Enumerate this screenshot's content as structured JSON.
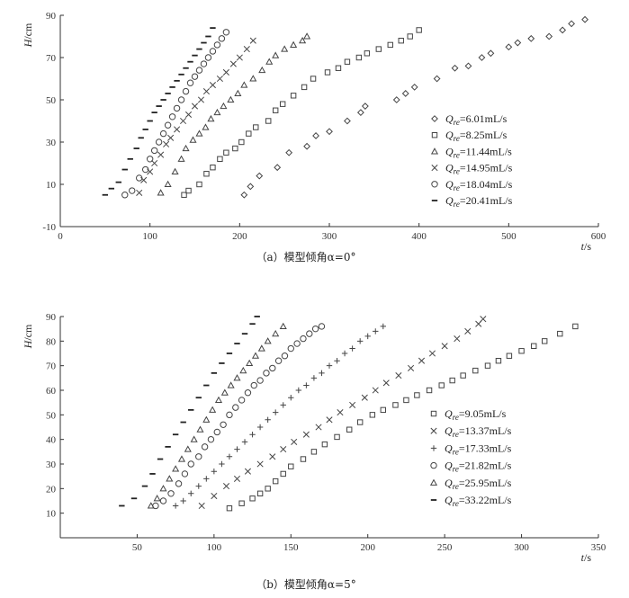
{
  "chart_data": [
    {
      "type": "scatter",
      "caption": "（a）模型倾角α=0°",
      "xlabel": "t/s",
      "ylabel": "H/cm",
      "xlim": [
        0,
        600
      ],
      "ylim": [
        -10,
        90
      ],
      "xticks": [
        0,
        100,
        200,
        300,
        400,
        500,
        600
      ],
      "yticks": [
        -10,
        10,
        30,
        50,
        70,
        90
      ],
      "grid": false,
      "legend_position": "right",
      "series": [
        {
          "name": "Qre=6.01mL/s",
          "marker": "diamond",
          "x": [
            205,
            212,
            222,
            242,
            255,
            275,
            285,
            300,
            320,
            335,
            340,
            375,
            385,
            395,
            420,
            440,
            455,
            470,
            480,
            500,
            510,
            525,
            545,
            560,
            570,
            585
          ],
          "y": [
            5,
            9,
            14,
            18,
            25,
            28,
            33,
            35,
            40,
            44,
            47,
            50,
            53,
            56,
            60,
            65,
            66,
            70,
            72,
            75,
            77,
            79,
            80,
            83,
            86,
            88
          ]
        },
        {
          "name": "Qre=8.25mL/s",
          "marker": "square",
          "x": [
            138,
            143,
            155,
            163,
            170,
            178,
            185,
            195,
            202,
            210,
            218,
            232,
            240,
            248,
            260,
            272,
            282,
            298,
            310,
            320,
            333,
            342,
            355,
            368,
            380,
            390,
            400
          ],
          "y": [
            5,
            7,
            10,
            15,
            18,
            22,
            25,
            27,
            30,
            34,
            37,
            40,
            45,
            48,
            52,
            56,
            60,
            63,
            65,
            68,
            70,
            72,
            74,
            76,
            78,
            80,
            83
          ]
        },
        {
          "name": "Qre=11.44mL/s",
          "marker": "triangle",
          "x": [
            112,
            120,
            128,
            135,
            140,
            148,
            155,
            162,
            168,
            175,
            182,
            190,
            198,
            205,
            215,
            225,
            233,
            240,
            250,
            260,
            270,
            275
          ],
          "y": [
            6,
            10,
            16,
            22,
            27,
            31,
            34,
            37,
            41,
            44,
            47,
            50,
            53,
            57,
            60,
            64,
            68,
            71,
            74,
            76,
            78,
            80
          ]
        },
        {
          "name": "Qre=14.95mL/s",
          "marker": "x",
          "x": [
            88,
            93,
            100,
            105,
            112,
            118,
            123,
            130,
            137,
            143,
            150,
            157,
            163,
            170,
            178,
            185,
            193,
            200,
            208,
            215
          ],
          "y": [
            6,
            12,
            16,
            20,
            24,
            29,
            32,
            36,
            40,
            43,
            47,
            50,
            54,
            57,
            60,
            63,
            67,
            70,
            74,
            78
          ]
        },
        {
          "name": "Qre=18.04mL/s",
          "marker": "circle",
          "x": [
            72,
            80,
            88,
            95,
            100,
            105,
            110,
            115,
            120,
            125,
            130,
            135,
            140,
            145,
            150,
            155,
            160,
            165,
            170,
            175,
            180,
            185
          ],
          "y": [
            5,
            7,
            13,
            17,
            22,
            26,
            30,
            34,
            38,
            42,
            46,
            50,
            54,
            58,
            61,
            64,
            67,
            70,
            73,
            76,
            79,
            82
          ]
        },
        {
          "name": "Qre=20.41mL/s",
          "marker": "dash",
          "x": [
            50,
            57,
            65,
            72,
            78,
            85,
            90,
            95,
            100,
            105,
            110,
            115,
            120,
            125,
            130,
            135,
            140,
            145,
            150,
            155,
            160,
            165,
            170
          ],
          "y": [
            5,
            8,
            11,
            17,
            22,
            27,
            32,
            36,
            40,
            44,
            47,
            50,
            53,
            56,
            59,
            62,
            65,
            68,
            71,
            74,
            77,
            80,
            84
          ]
        }
      ]
    },
    {
      "type": "scatter",
      "caption": "（b）模型倾角α=5°",
      "xlabel": "t/s",
      "ylabel": "H/cm",
      "xlim": [
        0,
        350
      ],
      "ylim": [
        0,
        90
      ],
      "xticks": [
        50,
        100,
        150,
        200,
        250,
        300,
        350
      ],
      "yticks": [
        10,
        20,
        30,
        40,
        50,
        60,
        70,
        80,
        90
      ],
      "grid": false,
      "legend_position": "right",
      "series": [
        {
          "name": "Qre=9.05mL/s",
          "marker": "square",
          "x": [
            110,
            118,
            125,
            130,
            135,
            140,
            145,
            150,
            158,
            165,
            172,
            180,
            188,
            195,
            203,
            210,
            218,
            225,
            232,
            240,
            248,
            255,
            262,
            270,
            278,
            285,
            292,
            300,
            308,
            315,
            325,
            335
          ],
          "y": [
            12,
            14,
            16,
            18,
            20,
            23,
            26,
            29,
            32,
            35,
            38,
            41,
            44,
            47,
            50,
            52,
            54,
            56,
            58,
            60,
            62,
            64,
            66,
            68,
            70,
            72,
            74,
            76,
            78,
            80,
            83,
            86
          ]
        },
        {
          "name": "Qre=13.37mL/s",
          "marker": "x",
          "x": [
            92,
            100,
            108,
            115,
            122,
            130,
            138,
            145,
            152,
            160,
            168,
            175,
            182,
            190,
            198,
            205,
            212,
            220,
            228,
            235,
            242,
            250,
            258,
            265,
            272,
            275
          ],
          "y": [
            13,
            17,
            21,
            24,
            27,
            30,
            33,
            36,
            39,
            42,
            45,
            48,
            51,
            54,
            57,
            60,
            63,
            66,
            69,
            72,
            75,
            78,
            81,
            84,
            87,
            89
          ]
        },
        {
          "name": "Qre=17.33mL/s",
          "marker": "plus",
          "x": [
            75,
            80,
            85,
            90,
            95,
            100,
            105,
            110,
            115,
            120,
            125,
            130,
            135,
            140,
            145,
            150,
            155,
            160,
            165,
            170,
            175,
            180,
            185,
            190,
            195,
            200,
            205,
            210
          ],
          "y": [
            13,
            15,
            18,
            21,
            24,
            27,
            30,
            33,
            36,
            39,
            42,
            45,
            48,
            51,
            54,
            57,
            60,
            62,
            65,
            67,
            70,
            72,
            75,
            77,
            80,
            82,
            84,
            86
          ]
        },
        {
          "name": "Qre=21.82mL/s",
          "marker": "circle",
          "x": [
            62,
            67,
            72,
            77,
            81,
            85,
            90,
            94,
            98,
            102,
            106,
            110,
            114,
            118,
            122,
            126,
            130,
            134,
            138,
            142,
            146,
            150,
            154,
            158,
            162,
            166,
            170
          ],
          "y": [
            13,
            15,
            18,
            22,
            26,
            30,
            33,
            37,
            40,
            43,
            46,
            50,
            53,
            56,
            59,
            62,
            64,
            67,
            69,
            72,
            74,
            77,
            79,
            81,
            83,
            85,
            86
          ]
        },
        {
          "name": "Qre=25.95mL/s",
          "marker": "triangle",
          "x": [
            59,
            63,
            67,
            71,
            75,
            79,
            83,
            87,
            91,
            95,
            99,
            103,
            107,
            111,
            115,
            119,
            123,
            127,
            131,
            135,
            140,
            145
          ],
          "y": [
            13,
            16,
            20,
            24,
            28,
            32,
            36,
            40,
            44,
            48,
            52,
            56,
            59,
            62,
            65,
            68,
            71,
            74,
            77,
            80,
            83,
            86
          ]
        },
        {
          "name": "Qre=33.22mL/s",
          "marker": "dash",
          "x": [
            40,
            48,
            55,
            60,
            65,
            70,
            75,
            80,
            85,
            90,
            95,
            100,
            105,
            110,
            115,
            120,
            125,
            128
          ],
          "y": [
            13,
            16,
            21,
            26,
            32,
            37,
            42,
            47,
            52,
            57,
            62,
            67,
            71,
            75,
            79,
            83,
            87,
            90
          ]
        }
      ]
    }
  ],
  "legend_labels_a": [
    {
      "q": "Q",
      "sub": "re",
      "val": "=6.01mL/s"
    },
    {
      "q": "Q",
      "sub": "re",
      "val": "=8.25mL/s"
    },
    {
      "q": "Q",
      "sub": "re",
      "val": "=11.44mL/s"
    },
    {
      "q": "Q",
      "sub": "re",
      "val": "=14.95mL/s"
    },
    {
      "q": "Q",
      "sub": "re",
      "val": "=18.04mL/s"
    },
    {
      "q": "Q",
      "sub": "re",
      "val": "=20.41mL/s"
    }
  ],
  "legend_labels_b": [
    {
      "q": "Q",
      "sub": "re",
      "val": "=9.05mL/s"
    },
    {
      "q": "Q",
      "sub": "re",
      "val": "=13.37mL/s"
    },
    {
      "q": "Q",
      "sub": "re",
      "val": "=17.33mL/s"
    },
    {
      "q": "Q",
      "sub": "re",
      "val": "=21.82mL/s"
    },
    {
      "q": "Q",
      "sub": "re",
      "val": "=25.95mL/s"
    },
    {
      "q": "Q",
      "sub": "re",
      "val": "=33.22mL/s"
    }
  ]
}
